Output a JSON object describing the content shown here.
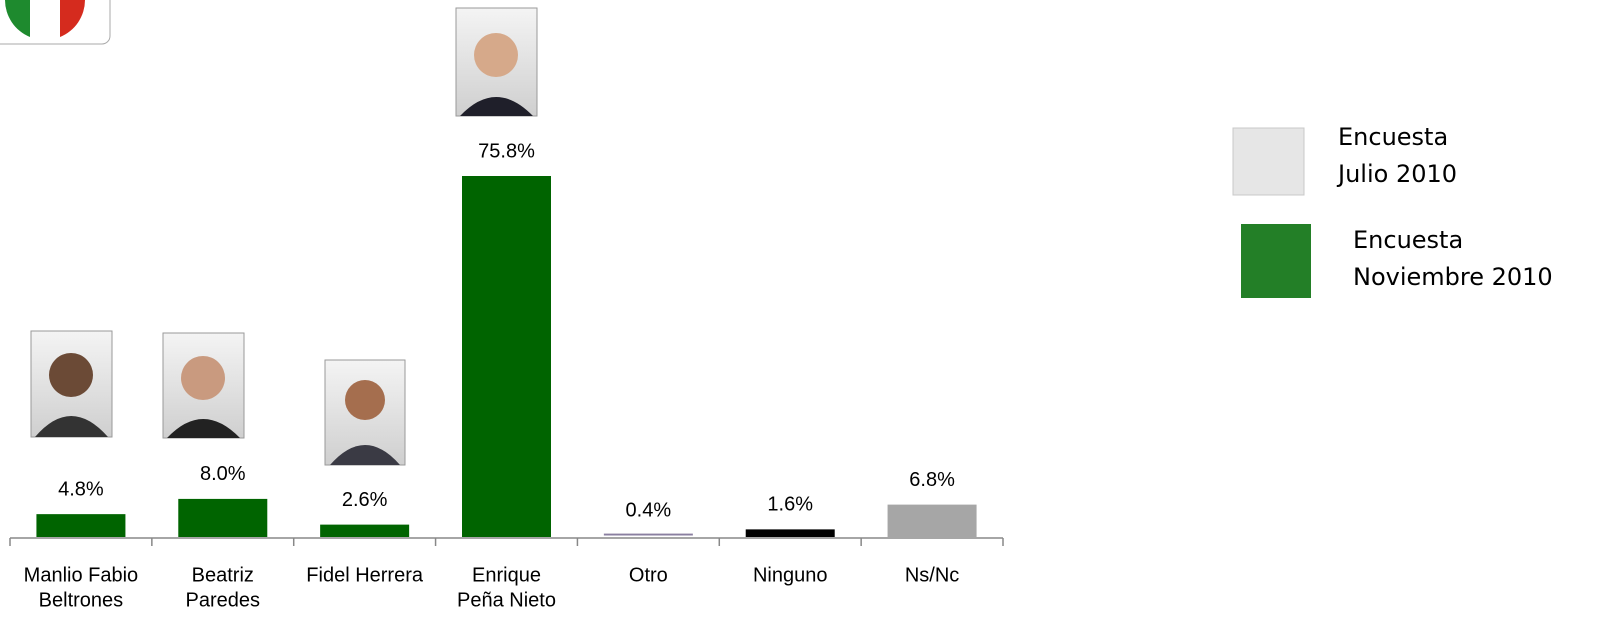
{
  "chart_data": {
    "type": "bar",
    "categories": [
      [
        "Manlio Fabio",
        "Beltrones"
      ],
      [
        "Beatriz",
        "Paredes"
      ],
      [
        "Fidel Herrera"
      ],
      [
        "Enrique",
        "Peña Nieto"
      ],
      [
        "Otro"
      ],
      [
        "Ninguno"
      ],
      [
        "Ns/Nc"
      ]
    ],
    "values": [
      4.8,
      8.0,
      2.6,
      75.8,
      0.4,
      1.6,
      6.8
    ],
    "value_labels": [
      "4.8%",
      "8.0%",
      "2.6%",
      "75.8%",
      "0.4%",
      "1.6%",
      "6.8%"
    ],
    "colors": [
      "#006400",
      "#006400",
      "#006400",
      "#006400",
      "#8a7fa0",
      "#000000",
      "#a6a6a6"
    ],
    "ylim": [
      0,
      80
    ],
    "legend": [
      {
        "name": [
          "Encuesta",
          "Julio 2010"
        ],
        "color": "#e6e6e6"
      },
      {
        "name": [
          "Encuesta",
          "Noviembre 2010"
        ],
        "color": "#237f27"
      }
    ]
  }
}
